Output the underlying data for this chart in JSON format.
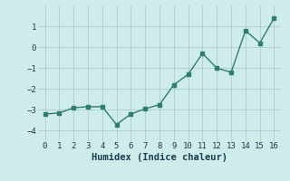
{
  "x": [
    0,
    1,
    2,
    3,
    4,
    5,
    6,
    7,
    8,
    9,
    10,
    11,
    12,
    13,
    14,
    15,
    16
  ],
  "y": [
    -3.2,
    -3.15,
    -2.9,
    -2.85,
    -2.85,
    -3.7,
    -3.2,
    -2.95,
    -2.75,
    -1.8,
    -1.3,
    -0.3,
    -1.0,
    -1.2,
    0.8,
    0.2,
    1.4
  ],
  "xlabel": "Humidex (Indice chaleur)",
  "ylabel": "",
  "xlim": [
    -0.5,
    16.5
  ],
  "ylim": [
    -4.5,
    2.0
  ],
  "yticks": [
    -4,
    -3,
    -2,
    -1,
    0,
    1
  ],
  "xticks": [
    0,
    1,
    2,
    3,
    4,
    5,
    6,
    7,
    8,
    9,
    10,
    11,
    12,
    13,
    14,
    15,
    16
  ],
  "line_color": "#2e7d6e",
  "marker_color": "#2e7d6e",
  "bg_color": "#ceecea",
  "grid_color": "#aececa",
  "label_color": "#1a3a50",
  "fig_width": 3.2,
  "fig_height": 2.0,
  "dpi": 100
}
